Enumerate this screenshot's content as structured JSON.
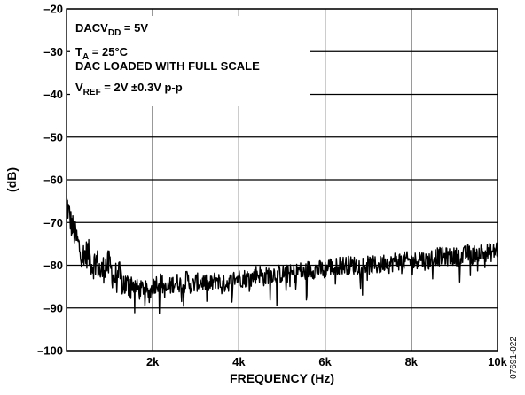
{
  "chart_data": {
    "type": "line",
    "xlabel": "FREQUENCY (Hz)",
    "ylabel": "(dB)",
    "xlim": [
      0,
      10000
    ],
    "ylim": [
      -100,
      -20
    ],
    "x_ticks": [
      2000,
      4000,
      6000,
      8000,
      10000
    ],
    "x_tick_labels": [
      "2k",
      "4k",
      "6k",
      "8k",
      "10k"
    ],
    "y_ticks": [
      -20,
      -30,
      -40,
      -50,
      -60,
      -70,
      -80,
      -90,
      -100
    ],
    "y_tick_labels": [
      "–20",
      "–30",
      "–40",
      "–50",
      "–60",
      "–70",
      "–80",
      "–90",
      "–100"
    ],
    "grid": true,
    "annotations": [
      {
        "parts": [
          {
            "t": "DACV"
          },
          {
            "t": "DD",
            "sub": true
          },
          {
            "t": " = 5V"
          }
        ]
      },
      {
        "parts": [
          {
            "t": "T"
          },
          {
            "t": "A",
            "sub": true
          },
          {
            "t": " = 25°C"
          }
        ]
      },
      {
        "parts": [
          {
            "t": "DAC LOADED WITH FULL SCALE"
          }
        ]
      },
      {
        "parts": [
          {
            "t": "V"
          },
          {
            "t": "REF",
            "sub": true
          },
          {
            "t": " = 2V ±0.3V p-p"
          }
        ]
      }
    ],
    "figure_id": "07691-022",
    "series": [
      {
        "color": "#000000",
        "x": [
          0,
          100,
          200,
          300,
          400,
          500,
          600,
          700,
          800,
          900,
          1000,
          1100,
          1200,
          1300,
          1400,
          1500,
          1600,
          1700,
          1800,
          1900,
          2000,
          2100,
          2200,
          2300,
          2400,
          2500,
          2600,
          2700,
          2800,
          2900,
          3000,
          3100,
          3200,
          3300,
          3400,
          3500,
          3600,
          3700,
          3800,
          3900,
          4000,
          4100,
          4200,
          4300,
          4400,
          4500,
          4600,
          4700,
          4800,
          4900,
          5000,
          5100,
          5200,
          5300,
          5400,
          5500,
          5600,
          5700,
          5800,
          5900,
          6000,
          6100,
          6200,
          6300,
          6400,
          6500,
          6600,
          6700,
          6800,
          6900,
          7000,
          7100,
          7200,
          7300,
          7400,
          7500,
          7600,
          7700,
          7800,
          7900,
          8000,
          8100,
          8200,
          8300,
          8400,
          8500,
          8600,
          8700,
          8800,
          8900,
          9000,
          9100,
          9200,
          9300,
          9400,
          9500,
          9600,
          9700,
          9800,
          9900,
          10000,
          10100
        ],
        "y": [
          -65,
          -70,
          -73,
          -76,
          -78,
          -77,
          -80,
          -79,
          -82,
          -80,
          -80,
          -83,
          -82,
          -84,
          -85,
          -84,
          -85,
          -86,
          -85,
          -87,
          -85,
          -84,
          -84,
          -86,
          -85,
          -84,
          -84,
          -85,
          -83,
          -85,
          -84,
          -84,
          -84,
          -85,
          -84,
          -83,
          -85,
          -84,
          -84,
          -83,
          -83,
          -83,
          -83,
          -83,
          -82,
          -82,
          -83,
          -82,
          -82,
          -82,
          -82,
          -82,
          -82,
          -82,
          -81,
          -82,
          -81,
          -81,
          -81,
          -81,
          -81,
          -80,
          -81,
          -80,
          -80,
          -80,
          -80,
          -80,
          -80,
          -80,
          -80,
          -80,
          -80,
          -80,
          -79,
          -80,
          -79,
          -79,
          -79,
          -79,
          -79,
          -79,
          -78,
          -79,
          -79,
          -78,
          -78,
          -78,
          -78,
          -78,
          -78,
          -78,
          -78,
          -77,
          -78,
          -77,
          -77,
          -77,
          -77,
          -77,
          -76,
          -77
        ]
      }
    ]
  }
}
